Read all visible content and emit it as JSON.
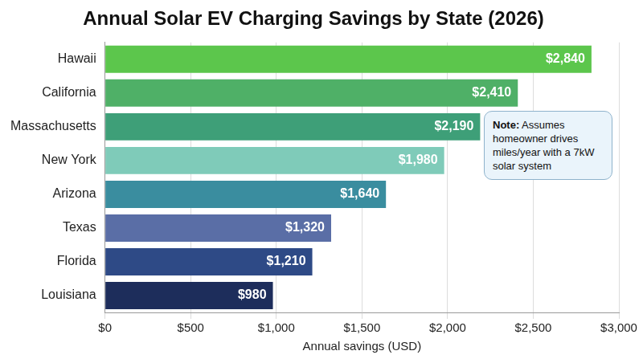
{
  "chart_data": {
    "type": "bar",
    "orientation": "horizontal",
    "title": "Annual Solar EV Charging Savings by State (2026)",
    "xlabel": "Annual savings (USD)",
    "annotation": "Note: Assumes homeowner drives miles/year with a 7kW solar system",
    "categories": [
      "Hawaii",
      "California",
      "Massachusetts",
      "New York",
      "Arizona",
      "Texas",
      "Florida",
      "Louisiana"
    ],
    "values": [
      2840,
      2410,
      2190,
      1980,
      1640,
      1320,
      1210,
      980
    ],
    "value_labels": [
      "$2,840",
      "$2,410",
      "$2,190",
      "$1,980",
      "$1,640",
      "$1,320",
      "$1,210",
      "$980"
    ],
    "colors": [
      "#5cc64c",
      "#4fb067",
      "#3e9f78",
      "#7fcbb9",
      "#3a8d9f",
      "#5a6ea6",
      "#2e4a86",
      "#1d2d5b"
    ],
    "xlim": [
      0,
      3000
    ],
    "xticks": [
      {
        "value": 0,
        "label": "$0"
      },
      {
        "value": 500,
        "label": "$500"
      },
      {
        "value": 1000,
        "label": "$1,000"
      },
      {
        "value": 1500,
        "label": "$1,500"
      },
      {
        "value": 2000,
        "label": "$2,000"
      },
      {
        "value": 2500,
        "label": "$2,500"
      },
      {
        "value": 3000,
        "label": "$3,000"
      }
    ],
    "grid": true,
    "data_labels": true
  }
}
